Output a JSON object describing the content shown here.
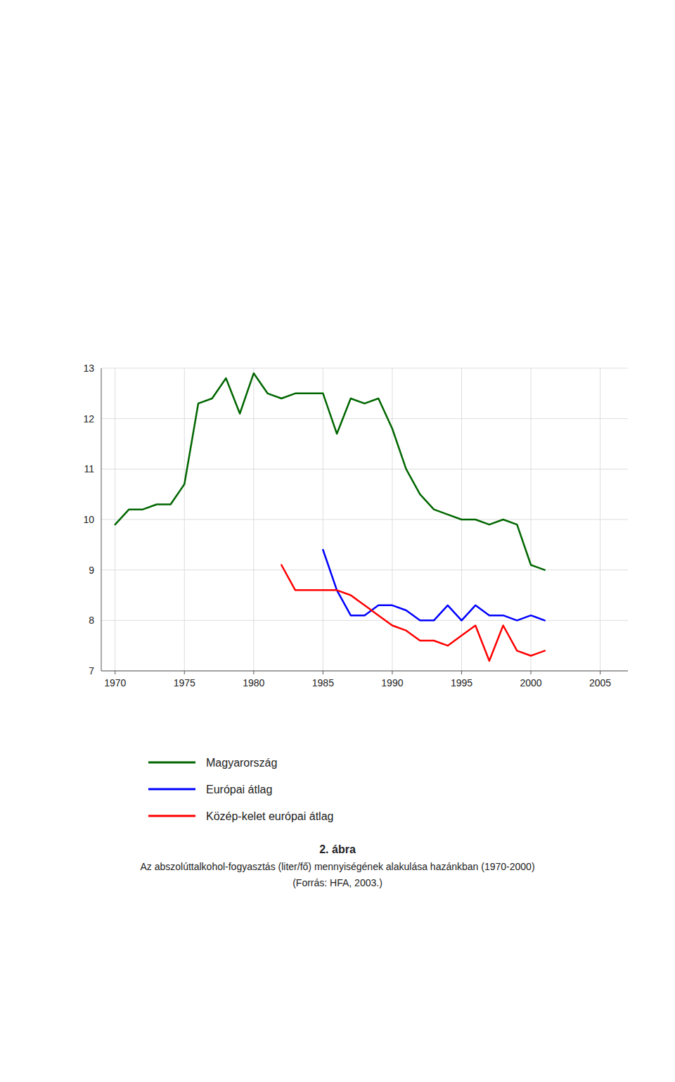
{
  "chart_data": {
    "type": "line",
    "title": "2. ábra",
    "subtitle": "Az abszolúttalkohol-fogyasztás (liter/fő) mennyiségének alakulása hazánkban (1970-2000)",
    "note": "(Forrás: HFA, 2003.)",
    "series": [
      {
        "name": "Magyarország",
        "color": "#006600",
        "x": [
          1970,
          1971,
          1972,
          1973,
          1974,
          1975,
          1976,
          1977,
          1978,
          1979,
          1980,
          1981,
          1982,
          1983,
          1984,
          1985,
          1986,
          1987,
          1988,
          1989,
          1990,
          1991,
          1992,
          1993,
          1994,
          1995,
          1996,
          1997,
          1998,
          1999,
          2000,
          2001
        ],
        "values": [
          9.9,
          10.2,
          10.2,
          10.3,
          10.3,
          10.7,
          12.3,
          12.4,
          12.8,
          12.1,
          12.9,
          12.5,
          12.4,
          12.5,
          12.5,
          12.5,
          11.7,
          12.4,
          12.3,
          12.4,
          11.8,
          11.0,
          10.5,
          10.2,
          10.1,
          10.0,
          10.0,
          9.9,
          10.0,
          9.9,
          9.1,
          9.0
        ]
      },
      {
        "name": "Európai átlag",
        "color": "#0000FF",
        "x": [
          1985,
          1986,
          1987,
          1988,
          1989,
          1990,
          1991,
          1992,
          1993,
          1994,
          1995,
          1996,
          1997,
          1998,
          1999,
          2000,
          2001
        ],
        "values": [
          9.4,
          8.6,
          8.1,
          8.1,
          8.3,
          8.3,
          8.2,
          8.0,
          8.0,
          8.3,
          8.0,
          8.3,
          8.1,
          8.1,
          8.0,
          8.1,
          8.0
        ]
      },
      {
        "name": "Közép-kelet európai átlag",
        "color": "#FF0000",
        "x": [
          1982,
          1983,
          1984,
          1985,
          1986,
          1987,
          1988,
          1989,
          1990,
          1991,
          1992,
          1993,
          1994,
          1995,
          1996,
          1997,
          1998,
          1999,
          2000,
          2001
        ],
        "values": [
          9.1,
          8.6,
          8.6,
          8.6,
          8.6,
          8.5,
          8.3,
          8.1,
          7.9,
          7.8,
          7.6,
          7.6,
          7.5,
          7.7,
          7.9,
          7.2,
          7.9,
          7.4,
          7.3,
          7.4
        ]
      }
    ],
    "xlim": [
      1969,
      2007
    ],
    "xticks": [
      1970,
      1975,
      1980,
      1985,
      1990,
      1995,
      2000,
      2005
    ],
    "ylim": [
      7,
      13
    ],
    "yticks": [
      7,
      8,
      9,
      10,
      11,
      12,
      13
    ],
    "grid": true,
    "legend": "bottom"
  }
}
